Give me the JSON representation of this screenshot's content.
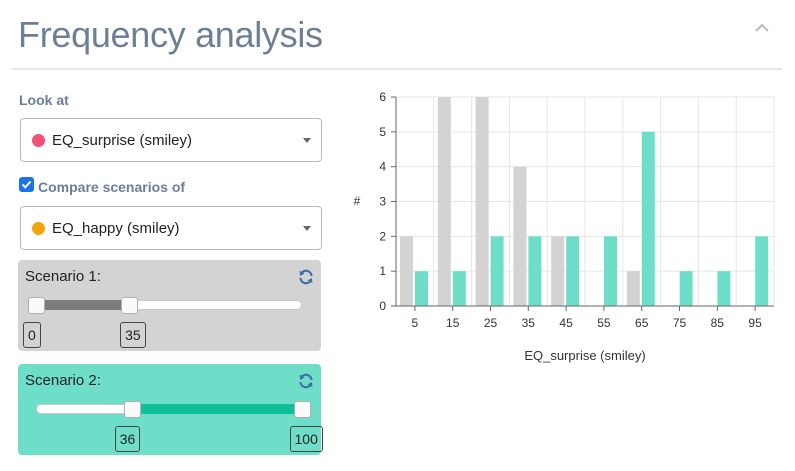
{
  "header": {
    "title": "Frequency analysis",
    "collapse_icon": "chevron-up-icon"
  },
  "look_at": {
    "label": "Look at",
    "selected": "EQ_surprise (smiley)",
    "dot_color": "#f0517a"
  },
  "compare": {
    "label": "Compare scenarios of",
    "checked": true,
    "selected": "EQ_happy (smiley)",
    "dot_color": "#f5a30a"
  },
  "scenario1": {
    "label": "Scenario 1:",
    "min": 0,
    "max": 100,
    "from": 0,
    "to": 35,
    "from_label": "0",
    "to_label": "35",
    "panel_color": "#d3d3d3",
    "fill_color": "#7c7c7c"
  },
  "scenario2": {
    "label": "Scenario 2:",
    "min": 0,
    "max": 100,
    "from": 36,
    "to": 100,
    "from_label": "36",
    "to_label": "100",
    "panel_color": "#6fdec9",
    "fill_color": "#0fbf9a"
  },
  "chart_data": {
    "type": "bar",
    "categories": [
      "5",
      "15",
      "25",
      "35",
      "45",
      "55",
      "65",
      "75",
      "85",
      "95"
    ],
    "series": [
      {
        "color": "#d3d3d3",
        "values": [
          2,
          6,
          6,
          4,
          2,
          0,
          1,
          0,
          0,
          0
        ]
      },
      {
        "color": "#6fdec9",
        "values": [
          1,
          1,
          2,
          2,
          2,
          2,
          5,
          1,
          1,
          2
        ]
      }
    ],
    "xlabel": "EQ_surprise (smiley)",
    "ylabel": "#",
    "ylim": [
      0,
      6
    ],
    "yticks": [
      "0",
      "1",
      "2",
      "3",
      "4",
      "5",
      "6"
    ],
    "grid": true
  }
}
